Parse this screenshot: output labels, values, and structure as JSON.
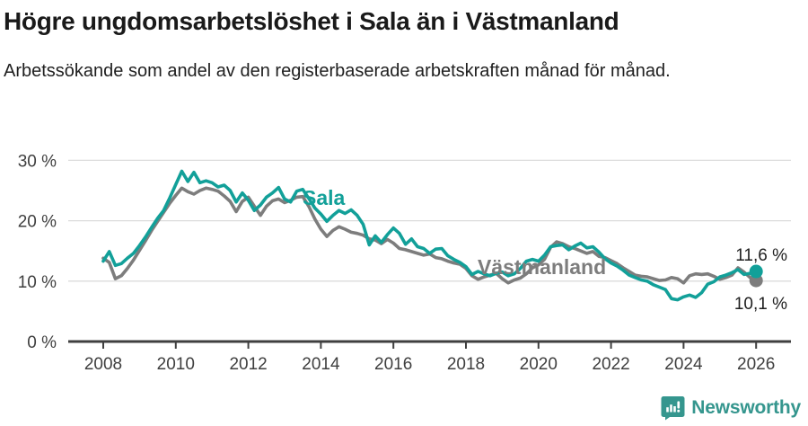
{
  "chart_data": {
    "type": "line",
    "title": "Högre ungdomsarbetslöshet i Sala än i Västmanland",
    "subtitle": "Arbetssökande som andel av den registerbaserade arbetskraften månad för månad.",
    "unit": "%",
    "x_start_year": 2008,
    "x_end_year": 2026,
    "samples_per_year": 6,
    "x_ticks": [
      2008,
      2010,
      2012,
      2014,
      2016,
      2018,
      2020,
      2022,
      2024,
      2026
    ],
    "y_ticks": [
      0,
      10,
      20,
      30
    ],
    "y_tick_labels": [
      "0 %",
      "10 %",
      "20 %",
      "30 %"
    ],
    "ylim": [
      0,
      31
    ],
    "grid": "horizontal",
    "legend_position": "inline-labels",
    "series": [
      {
        "name": "Sala",
        "slug": "sala",
        "color": "#12a099",
        "end_label": "11,6 %",
        "end_value": 11.6,
        "values": [
          13.3,
          14.9,
          12.6,
          12.9,
          13.8,
          14.6,
          15.9,
          17.3,
          18.9,
          20.4,
          21.7,
          23.8,
          26.0,
          28.2,
          26.5,
          28.0,
          26.3,
          26.6,
          26.3,
          25.6,
          25.9,
          25.0,
          23.1,
          24.6,
          23.4,
          21.7,
          22.6,
          23.9,
          24.6,
          25.5,
          23.6,
          23.1,
          24.9,
          25.2,
          23.7,
          22.1,
          21.1,
          19.9,
          20.9,
          21.7,
          21.2,
          21.8,
          20.9,
          19.4,
          16.0,
          17.5,
          16.4,
          17.7,
          18.8,
          17.9,
          16.1,
          17.0,
          15.7,
          15.4,
          14.6,
          15.3,
          15.4,
          14.2,
          13.6,
          13.1,
          12.4,
          11.1,
          11.6,
          11.2,
          10.9,
          11.3,
          11.5,
          10.9,
          11.2,
          12.1,
          13.3,
          13.6,
          13.3,
          14.3,
          15.7,
          15.9,
          16.0,
          15.2,
          15.8,
          16.3,
          15.5,
          15.7,
          14.8,
          13.7,
          13.0,
          12.5,
          11.8,
          11.0,
          10.6,
          10.2,
          10.0,
          9.4,
          9.0,
          8.6,
          7.1,
          6.9,
          7.4,
          7.7,
          7.3,
          8.1,
          9.5,
          9.9,
          10.7,
          11.0,
          11.4,
          11.9,
          11.1,
          11.3,
          11.6
        ]
      },
      {
        "name": "Västmanland",
        "slug": "vastmanland",
        "color": "#7d7d7d",
        "end_label": "10,1 %",
        "end_value": 10.1,
        "values": [
          13.8,
          13.1,
          10.4,
          10.9,
          12.1,
          13.5,
          15.1,
          16.7,
          18.4,
          19.9,
          21.4,
          22.9,
          24.2,
          25.4,
          24.8,
          24.4,
          25.0,
          25.4,
          25.2,
          24.9,
          24.1,
          23.2,
          21.5,
          23.2,
          23.9,
          22.4,
          20.9,
          22.4,
          23.3,
          23.6,
          23.0,
          23.4,
          23.9,
          24.0,
          22.4,
          20.3,
          18.6,
          17.4,
          18.4,
          19.0,
          18.6,
          18.1,
          17.9,
          17.6,
          17.0,
          16.8,
          16.2,
          16.9,
          16.3,
          15.4,
          15.2,
          14.9,
          14.6,
          14.3,
          14.5,
          13.9,
          13.7,
          13.3,
          13.0,
          12.8,
          12.1,
          10.9,
          10.3,
          10.7,
          11.0,
          11.3,
          10.4,
          9.7,
          10.2,
          10.5,
          11.2,
          12.2,
          12.7,
          13.6,
          15.6,
          16.5,
          16.2,
          15.7,
          15.4,
          15.0,
          14.6,
          14.9,
          14.1,
          13.9,
          13.4,
          12.9,
          12.2,
          11.6,
          11.0,
          10.8,
          10.7,
          10.4,
          10.1,
          10.2,
          10.6,
          10.4,
          9.7,
          10.9,
          11.2,
          11.1,
          11.2,
          10.8,
          10.3,
          10.6,
          11.0,
          12.2,
          11.5,
          10.6,
          10.1
        ]
      }
    ]
  },
  "footer": {
    "brand": "Newsworthy",
    "logo_color": "#35968e"
  }
}
